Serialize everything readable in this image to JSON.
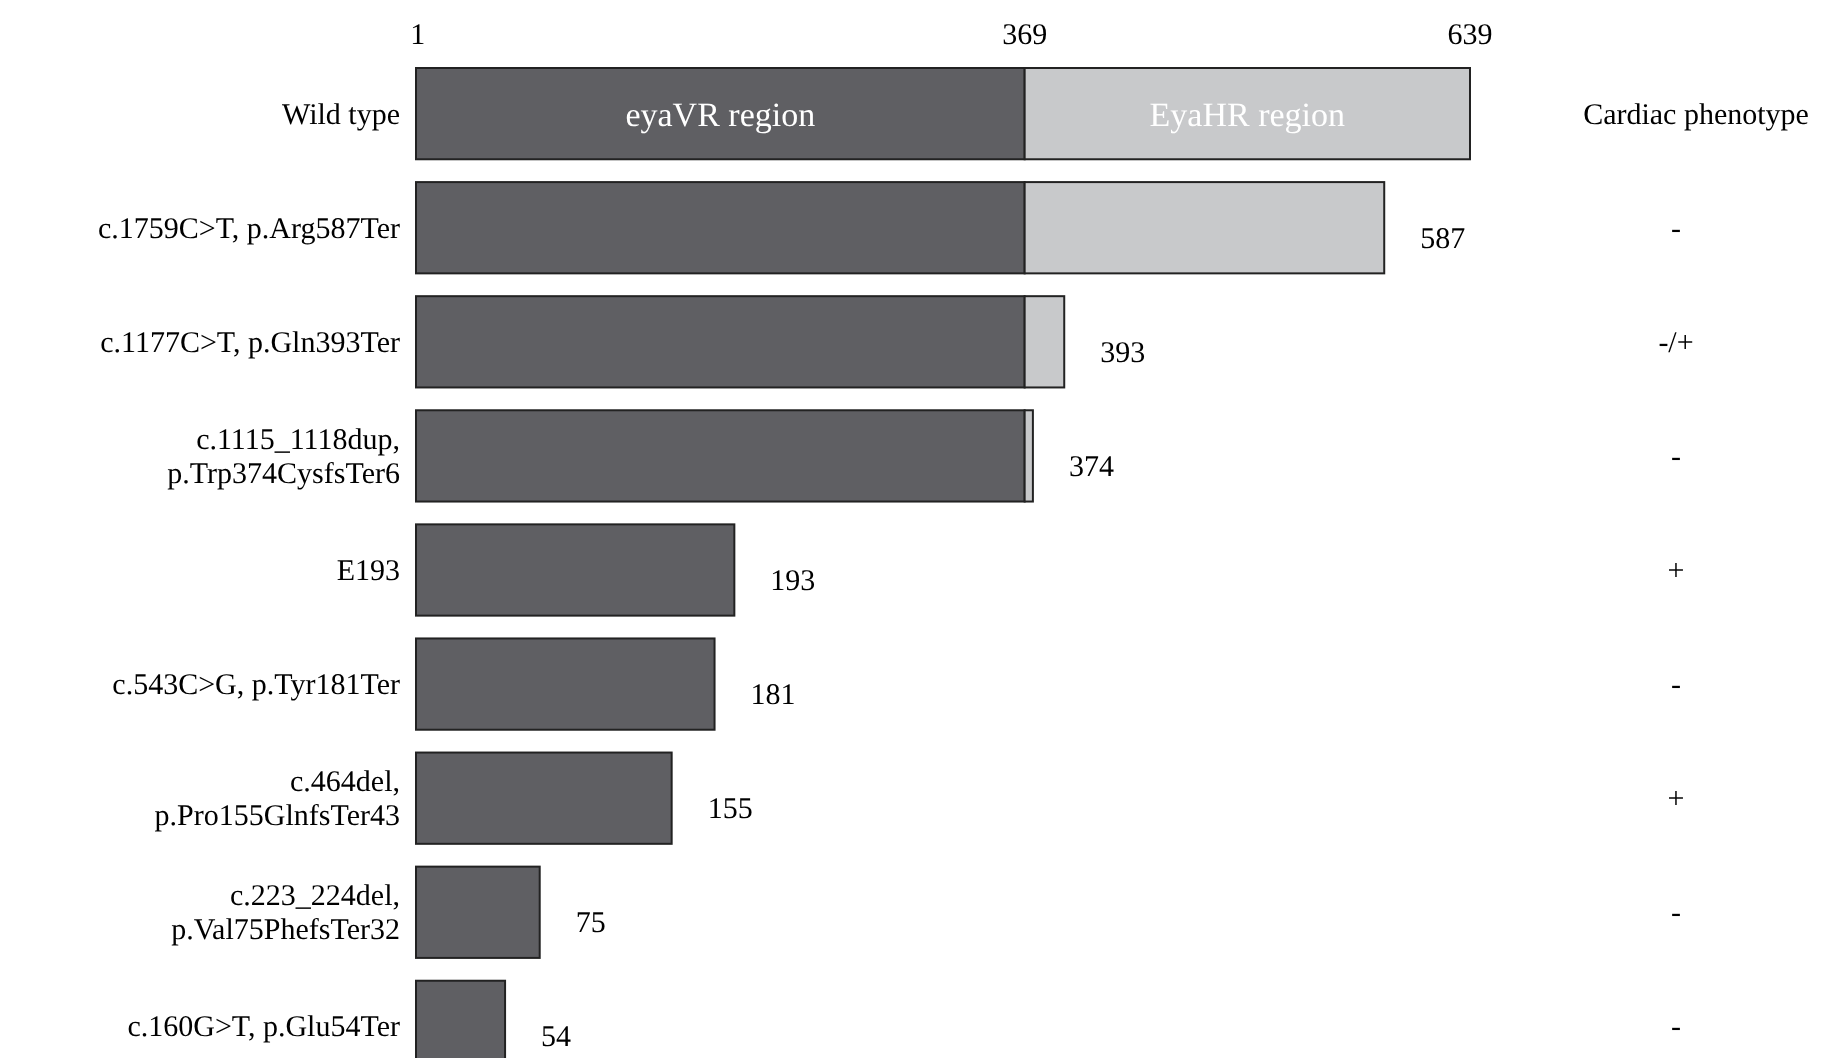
{
  "chart_data": {
    "type": "bar",
    "orientation": "horizontal",
    "stacked": true,
    "categories": [
      "Wild type",
      "c.1759C>T, p.Arg587Ter",
      "c.1177C>T, p.Gln393Ter",
      "c.1115_1118dup,\np.Trp374CysfsTer6",
      "E193",
      "c.543C>G, p.Tyr181Ter",
      "c.464del,\np.Pro155GlnfsTer43",
      "c.223_224del,\np.Val75PhefsTer32",
      "c.160G>T, p.Glu54Ter"
    ],
    "series": [
      {
        "name": "eyaVR region",
        "color": "#5f5f63",
        "values": [
          369,
          369,
          369,
          369,
          193,
          181,
          155,
          75,
          54
        ]
      },
      {
        "name": "EyaHR region",
        "color": "#c8c9cb",
        "values": [
          270,
          218,
          24,
          5,
          null,
          null,
          null,
          null,
          null
        ]
      }
    ],
    "totals": [
      null,
      "587",
      "393",
      "374",
      "193",
      "181",
      "155",
      "75",
      "54"
    ],
    "xlim": [
      0,
      639
    ],
    "xticks": [
      1,
      369,
      639
    ],
    "annotations": [
      "Cardiac phenotype",
      "-",
      "-/+",
      "-",
      "+",
      "-",
      "+",
      "-",
      "-"
    ]
  }
}
